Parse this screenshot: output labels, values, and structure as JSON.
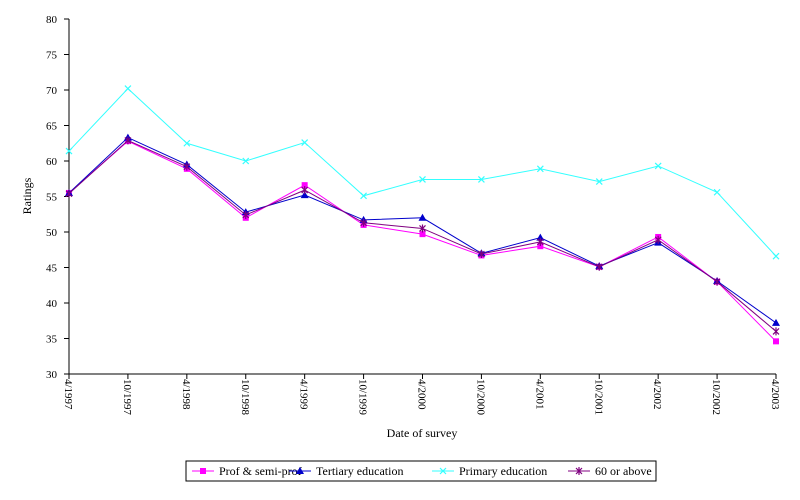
{
  "chart_data": {
    "type": "line",
    "xlabel": "Date of survey",
    "ylabel": "Ratings",
    "ylim": [
      30,
      80
    ],
    "yticks": [
      30,
      35,
      40,
      45,
      50,
      55,
      60,
      65,
      70,
      75,
      80
    ],
    "grid": false,
    "legend_position": "bottom",
    "x": [
      "4/1997",
      "10/1997",
      "4/1998",
      "10/1998",
      "4/1999",
      "10/1999",
      "4/2000",
      "10/2000",
      "4/2001",
      "10/2001",
      "4/2002",
      "10/2002",
      "4/2003"
    ],
    "series": [
      {
        "name": "Prof & semi-prof",
        "color": "#ff00ff",
        "marker": "square",
        "values": [
          55.5,
          62.8,
          58.9,
          52.0,
          56.6,
          51.0,
          49.7,
          46.7,
          48.0,
          45.1,
          49.3,
          43.0,
          34.6
        ]
      },
      {
        "name": "Tertiary education",
        "color": "#0000cc",
        "marker": "triangle",
        "values": [
          55.5,
          63.3,
          59.5,
          52.8,
          55.2,
          51.7,
          52.0,
          47.0,
          49.2,
          45.2,
          48.5,
          43.1,
          37.2
        ]
      },
      {
        "name": "Primary education",
        "color": "#33ffff",
        "marker": "x",
        "values": [
          61.4,
          70.2,
          62.5,
          60.0,
          62.6,
          55.1,
          57.4,
          57.4,
          58.9,
          57.1,
          59.3,
          55.6,
          46.6
        ]
      },
      {
        "name": "60 or above",
        "color": "#800080",
        "marker": "star",
        "values": [
          55.4,
          62.9,
          59.2,
          52.4,
          55.9,
          51.3,
          50.5,
          46.9,
          48.6,
          45.1,
          48.9,
          43.0,
          36.0
        ]
      }
    ]
  }
}
